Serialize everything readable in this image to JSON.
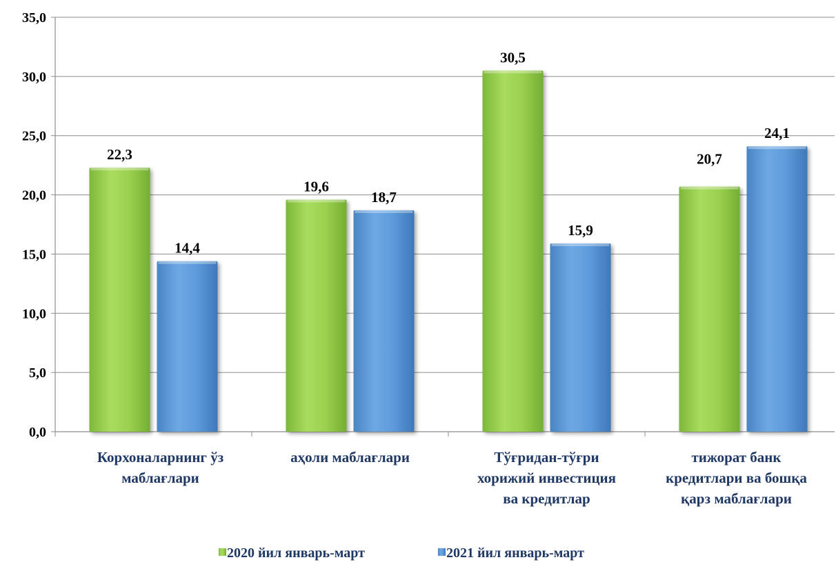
{
  "chart_data": {
    "type": "bar",
    "categories": [
      [
        "Корхоналарнинг ўз",
        "маблағлари"
      ],
      [
        "аҳоли маблағлари"
      ],
      [
        "Тўғридан-тўғри",
        "хорижий инвестиция",
        "ва кредитлар"
      ],
      [
        "тижорат банк",
        "кредитлари ва бошқа",
        "қарз маблағлари"
      ]
    ],
    "series": [
      {
        "name": "2020 йил январь-март",
        "values": [
          22.3,
          19.6,
          30.5,
          20.7
        ],
        "labels": [
          "22,3",
          "19,6",
          "30,5",
          "20,7"
        ],
        "color": "#92D050"
      },
      {
        "name": "2021 йил январь-март",
        "values": [
          14.4,
          18.7,
          15.9,
          24.1
        ],
        "labels": [
          "14,4",
          "18,7",
          "15,9",
          "24,1"
        ],
        "color": "#5B9BD5"
      }
    ],
    "ylim": [
      0,
      35
    ],
    "yticks": [
      "0,0",
      "5,0",
      "10,0",
      "15,0",
      "20,0",
      "25,0",
      "30,0",
      "35,0"
    ],
    "grid": true,
    "legend_position": "bottom"
  }
}
